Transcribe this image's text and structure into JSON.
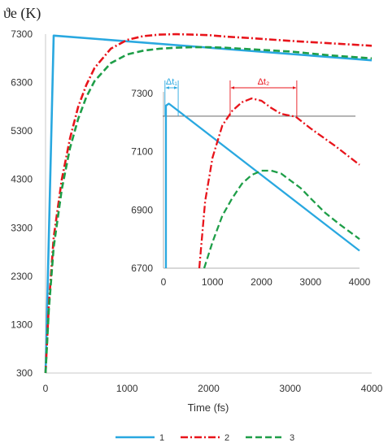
{
  "chart_data": [
    {
      "type": "line",
      "role": "main",
      "ylabel": "ϑe (K)",
      "xlabel": "Time (fs)",
      "xlim": [
        0,
        4000
      ],
      "ylim": [
        300,
        7300
      ],
      "xticks": [
        "0",
        "1000",
        "2000",
        "3000",
        "4000"
      ],
      "yticks": [
        "300",
        "1300",
        "2300",
        "3300",
        "4300",
        "5300",
        "6300",
        "7300"
      ],
      "grid": false,
      "legend_position": "bottom",
      "colors": {
        "series1": "#29a8e0",
        "series2": "#e8141b",
        "series3": "#1e9e48"
      },
      "series": [
        {
          "name": "1",
          "style": "solid",
          "x": [
            0,
            100,
            4000
          ],
          "y": [
            300,
            7270,
            6760
          ]
        },
        {
          "name": "2",
          "style": "dash-dot",
          "x": [
            0,
            40,
            100,
            200,
            300,
            400,
            500,
            600,
            800,
            1000,
            1200,
            1400,
            1600,
            1800,
            2000,
            2200,
            2500,
            3000,
            3500,
            4000
          ],
          "y": [
            300,
            1700,
            3100,
            4300,
            5150,
            5800,
            6250,
            6600,
            7000,
            7180,
            7260,
            7290,
            7300,
            7290,
            7280,
            7250,
            7220,
            7160,
            7110,
            7060
          ]
        },
        {
          "name": "3",
          "style": "dashed",
          "x": [
            0,
            40,
            100,
            200,
            300,
            400,
            500,
            600,
            800,
            1000,
            1200,
            1400,
            1600,
            1800,
            2000,
            2200,
            2500,
            3000,
            3500,
            4000
          ],
          "y": [
            300,
            1600,
            2900,
            4100,
            4950,
            5550,
            6000,
            6330,
            6700,
            6880,
            6960,
            7000,
            7020,
            7030,
            7030,
            7020,
            6990,
            6940,
            6860,
            6800
          ]
        }
      ]
    },
    {
      "type": "line",
      "role": "inset",
      "xlim": [
        0,
        4000
      ],
      "ylim": [
        6700,
        7300
      ],
      "xticks": [
        "0",
        "1000",
        "2000",
        "3000",
        "4000"
      ],
      "yticks": [
        "6700",
        "6900",
        "7100",
        "7300"
      ],
      "reference_line_y": 7222,
      "annotations": [
        {
          "label": "Δt₁",
          "x_from": 30,
          "x_to": 300,
          "color": "#29a8e0"
        },
        {
          "label": "Δt₂",
          "x_from": 1360,
          "x_to": 2720,
          "color": "#e8141b"
        }
      ],
      "series": [
        {
          "name": "1",
          "style": "solid",
          "x": [
            50,
            50,
            110,
            4000
          ],
          "y": [
            6700,
            7258,
            7265,
            6760
          ]
        },
        {
          "name": "2",
          "style": "dash-dot",
          "x": [
            730,
            850,
            1000,
            1200,
            1400,
            1600,
            1800,
            2000,
            2200,
            2400,
            2700,
            3000,
            3500,
            4000
          ],
          "y": [
            6700,
            6930,
            7080,
            7190,
            7240,
            7270,
            7283,
            7275,
            7250,
            7230,
            7220,
            7180,
            7120,
            7055
          ]
        },
        {
          "name": "3",
          "style": "dashed",
          "x": [
            830,
            1000,
            1200,
            1400,
            1600,
            1800,
            2000,
            2200,
            2400,
            2600,
            2800,
            3000,
            3300,
            3600,
            4000
          ],
          "y": [
            6700,
            6790,
            6880,
            6940,
            6990,
            7020,
            7035,
            7035,
            7025,
            7000,
            6975,
            6940,
            6890,
            6850,
            6800
          ]
        }
      ]
    }
  ]
}
